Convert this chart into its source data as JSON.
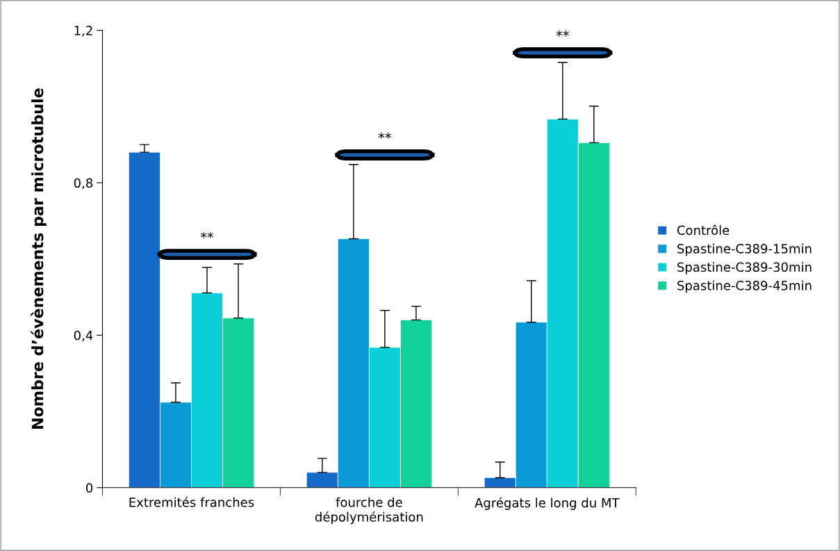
{
  "chart_data": {
    "type": "bar",
    "ylabel": "Nombre d’évènements par microtubule",
    "categories": [
      "Extremités franches",
      "fourche de\ndépolymérisation",
      "Agrégats le long du MT"
    ],
    "series": [
      {
        "name": "Contrôle",
        "color": "#1569c7",
        "values": [
          0.88,
          0.04,
          0.026
        ],
        "errors": [
          [
            0.88,
            0.9
          ],
          [
            0.04,
            0.077
          ],
          [
            0.026,
            0.067
          ]
        ]
      },
      {
        "name": "Spastine-C389-15min",
        "color": "#0a9ad8",
        "values": [
          0.224,
          0.653,
          0.434
        ],
        "errors": [
          [
            0.224,
            0.275
          ],
          [
            0.653,
            0.848
          ],
          [
            0.434,
            0.543
          ]
        ]
      },
      {
        "name": "Spastine-C389-30min",
        "color": "#0acfd8",
        "values": [
          0.511,
          0.368,
          0.967
        ],
        "errors": [
          [
            0.511,
            0.578
          ],
          [
            0.368,
            0.465
          ],
          [
            0.967,
            1.116
          ]
        ]
      },
      {
        "name": "Spastine-C389-45min",
        "color": "#12d09a",
        "values": [
          0.445,
          0.44,
          0.905
        ],
        "errors": [
          [
            0.445,
            0.587
          ],
          [
            0.44,
            0.476
          ],
          [
            0.905,
            1.001
          ]
        ]
      }
    ],
    "ylim": [
      0,
      1.2
    ],
    "yticks": [
      0,
      {
        "value": 0.4,
        "label": "0,4"
      },
      {
        "value": 0.8,
        "label": "0,8"
      },
      {
        "value": 1.2,
        "label": "1,2"
      }
    ],
    "annotations": [
      "**",
      "**",
      "**"
    ],
    "legend": "right",
    "grid": false
  }
}
